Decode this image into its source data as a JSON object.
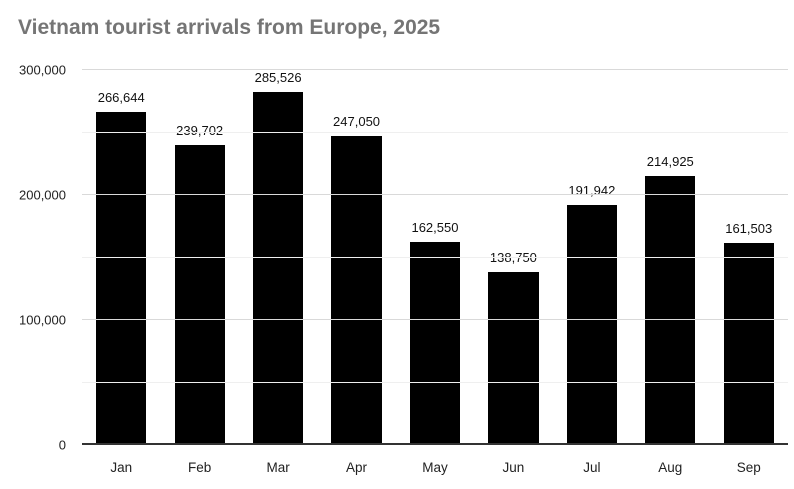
{
  "chart_data": {
    "type": "bar",
    "title": "Vietnam tourist arrivals from Europe, 2025",
    "categories": [
      "Jan",
      "Feb",
      "Mar",
      "Apr",
      "May",
      "Jun",
      "Jul",
      "Aug",
      "Sep"
    ],
    "values": [
      266644,
      239702,
      285526,
      247050,
      162550,
      138750,
      191942,
      214925,
      161503
    ],
    "value_labels": [
      "266,644",
      "239,702",
      "285,526",
      "247,050",
      "162,550",
      "138,750",
      "191,942",
      "214,925",
      "161,503"
    ],
    "xlabel": "",
    "ylabel": "",
    "ylim": [
      0,
      300000
    ],
    "yticks": [
      0,
      100000,
      200000,
      300000
    ],
    "ytick_labels": [
      "0",
      "100,000",
      "200,000",
      "300,000"
    ],
    "minor_ytick_step": 50000,
    "grid": true,
    "legend": "none",
    "bar_color": "#000000",
    "title_color": "#757575"
  }
}
